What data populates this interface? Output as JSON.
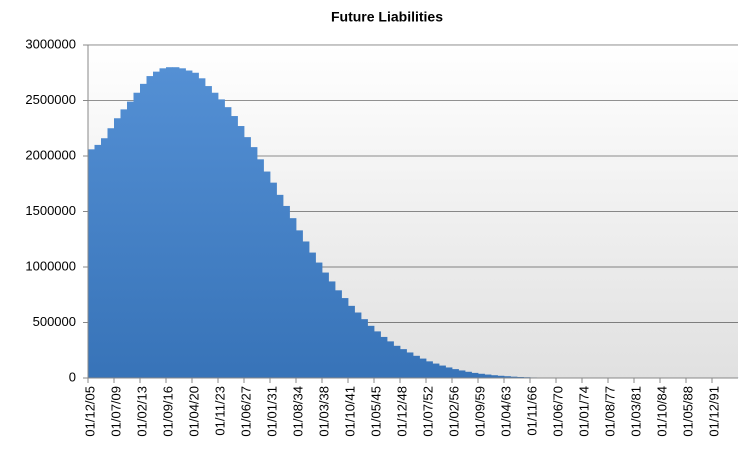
{
  "chart_data": {
    "type": "bar",
    "title": "Future Liabilities",
    "categories": [
      "01/12/05",
      null,
      null,
      null,
      "01/07/09",
      null,
      null,
      null,
      "01/02/13",
      null,
      null,
      null,
      "01/09/16",
      null,
      null,
      null,
      "01/04/20",
      null,
      null,
      null,
      "01/11/23",
      null,
      null,
      null,
      "01/06/27",
      null,
      null,
      null,
      "01/01/31",
      null,
      null,
      null,
      "01/08/34",
      null,
      null,
      null,
      "01/03/38",
      null,
      null,
      null,
      "01/10/41",
      null,
      null,
      null,
      "01/05/45",
      null,
      null,
      null,
      "01/12/48",
      null,
      null,
      null,
      "01/07/52",
      null,
      null,
      null,
      "01/02/56",
      null,
      null,
      null,
      "01/09/59",
      null,
      null,
      null,
      "01/04/63",
      null,
      null,
      null,
      "01/11/66",
      null,
      null,
      null,
      "01/06/70",
      null,
      null,
      null,
      "01/01/74",
      null,
      null,
      null,
      "01/08/77",
      null,
      null,
      null,
      "01/03/81",
      null,
      null,
      null,
      "01/10/84",
      null,
      null,
      null,
      "01/05/88",
      null,
      null,
      null,
      "01/12/91",
      null,
      null,
      null
    ],
    "values": [
      2060000,
      2100000,
      2160000,
      2250000,
      2340000,
      2420000,
      2490000,
      2570000,
      2650000,
      2720000,
      2760000,
      2790000,
      2800000,
      2800000,
      2790000,
      2770000,
      2750000,
      2700000,
      2630000,
      2570000,
      2510000,
      2440000,
      2360000,
      2270000,
      2170000,
      2080000,
      1970000,
      1860000,
      1760000,
      1650000,
      1550000,
      1440000,
      1330000,
      1230000,
      1130000,
      1040000,
      950000,
      870000,
      790000,
      720000,
      650000,
      590000,
      530000,
      470000,
      420000,
      370000,
      330000,
      290000,
      260000,
      230000,
      200000,
      175000,
      150000,
      130000,
      112000,
      95000,
      80000,
      68000,
      56000,
      46000,
      38000,
      31000,
      25000,
      20000,
      16000,
      12000,
      9000,
      7000,
      5000,
      4000,
      3000,
      2000,
      2000,
      2000,
      2000,
      2000,
      2000,
      2000,
      2000,
      2000,
      2000,
      2000,
      2000,
      2000,
      2000,
      2000,
      2000,
      2000,
      2000,
      2000,
      2000,
      2000,
      2000,
      2000,
      2000,
      2000,
      2000,
      2000,
      2000,
      2000
    ],
    "color": "#3f83d1",
    "ylim": [
      0,
      3000000
    ],
    "yticks": [
      0,
      500000,
      1000000,
      1500000,
      2000000,
      2500000,
      3000000
    ],
    "grid": true
  }
}
